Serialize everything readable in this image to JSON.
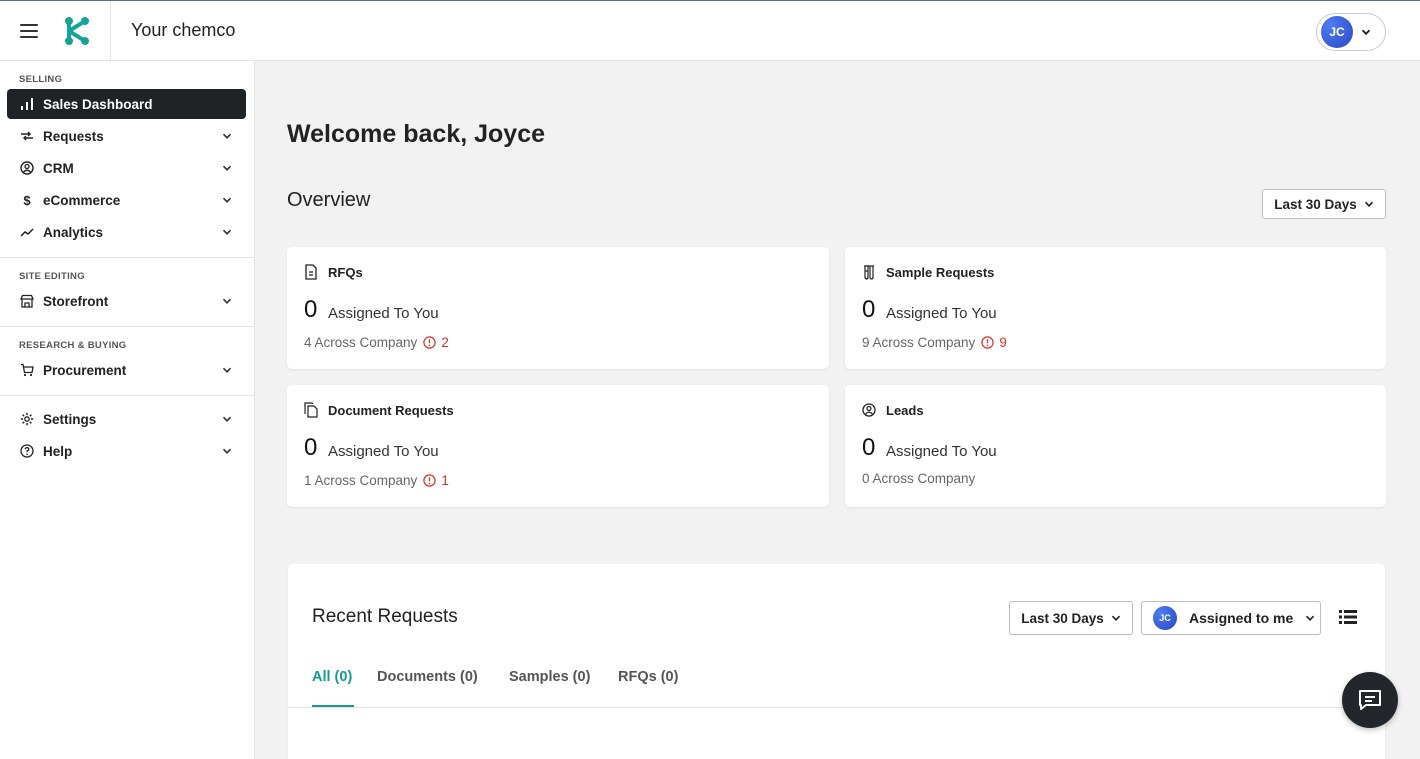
{
  "header": {
    "company_name": "Your chemco",
    "user_initials": "JC"
  },
  "sidebar": {
    "sections": [
      {
        "label": "SELLING"
      },
      {
        "label": "SITE EDITING"
      },
      {
        "label": "RESEARCH & BUYING"
      }
    ],
    "items": [
      {
        "label": "Sales Dashboard",
        "icon": "bar-chart-icon",
        "active": true
      },
      {
        "label": "Requests",
        "icon": "transfer-icon"
      },
      {
        "label": "CRM",
        "icon": "user-circle-icon"
      },
      {
        "label": "eCommerce",
        "icon": "dollar-icon"
      },
      {
        "label": "Analytics",
        "icon": "trend-line-icon"
      },
      {
        "label": "Storefront",
        "icon": "store-icon"
      },
      {
        "label": "Procurement",
        "icon": "cart-icon"
      },
      {
        "label": "Settings",
        "icon": "gear-icon"
      },
      {
        "label": "Help",
        "icon": "help-circle-icon"
      }
    ]
  },
  "main": {
    "welcome": "Welcome back, Joyce",
    "overview_title": "Overview",
    "overview_range": "Last 30 Days",
    "cards": [
      {
        "title": "RFQs",
        "icon": "document-icon",
        "assigned_count": "0",
        "assigned_label": "Assigned To You",
        "across_label": "4 Across Company",
        "alert_count": "2"
      },
      {
        "title": "Sample Requests",
        "icon": "test-tubes-icon",
        "assigned_count": "0",
        "assigned_label": "Assigned To You",
        "across_label": "9 Across Company",
        "alert_count": "9"
      },
      {
        "title": "Document Requests",
        "icon": "documents-icon",
        "assigned_count": "0",
        "assigned_label": "Assigned To You",
        "across_label": "1 Across Company",
        "alert_count": "1"
      },
      {
        "title": "Leads",
        "icon": "user-circle-icon",
        "assigned_count": "0",
        "assigned_label": "Assigned To You",
        "across_label": "0 Across Company"
      }
    ],
    "recent": {
      "title": "Recent Requests",
      "range": "Last 30 Days",
      "assigned_filter": "Assigned to me",
      "assigned_initials": "JC",
      "tabs": [
        {
          "label": "All (0)",
          "active": true
        },
        {
          "label": "Documents (0)"
        },
        {
          "label": "Samples (0)"
        },
        {
          "label": "RFQs (0)"
        }
      ]
    }
  },
  "colors": {
    "accent": "#159a8c",
    "alert": "#d93025",
    "active_nav": "#1f2326"
  }
}
